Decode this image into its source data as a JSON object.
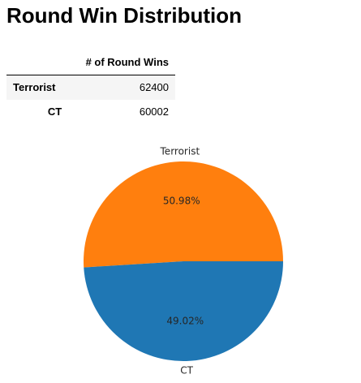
{
  "title": "Round Win Distribution",
  "table": {
    "header": [
      "",
      "# of Round Wins"
    ],
    "rows": [
      {
        "label": "Terrorist",
        "value": "62400"
      },
      {
        "label": "CT",
        "value": "60002"
      }
    ]
  },
  "chart_data": {
    "type": "pie",
    "labels": [
      "Terrorist",
      "CT"
    ],
    "values": [
      62400,
      60002
    ],
    "percent_labels": [
      "50.98%",
      "49.02%"
    ],
    "colors": [
      "#ff7f0e",
      "#1f77b4"
    ],
    "legend": "none"
  }
}
